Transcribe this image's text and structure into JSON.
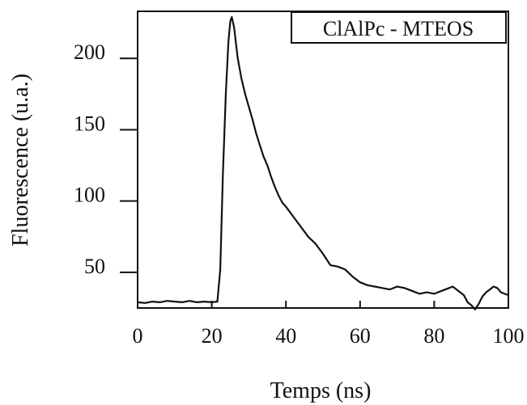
{
  "chart_data": {
    "type": "line",
    "title": "",
    "legend": "ClAlPc - MTEOS",
    "xlabel": "Temps (ns)",
    "ylabel": "Fluorescence (u.a.)",
    "xlim": [
      0,
      100
    ],
    "ylim": [
      25,
      233
    ],
    "x_ticks": [
      "0",
      "20",
      "40",
      "60",
      "80",
      "100"
    ],
    "y_ticks": [
      "50",
      "100",
      "150",
      "200"
    ],
    "grid": false,
    "legend_position": "top-right",
    "series": [
      {
        "x": [
          0,
          2,
          4,
          6,
          8,
          10,
          12,
          14,
          16,
          18,
          20,
          21.5,
          22.3,
          23,
          23.8,
          24.5,
          25,
          25.4,
          26,
          27,
          28,
          29,
          30,
          31,
          32,
          33,
          34,
          35,
          36,
          37,
          38,
          39,
          40,
          42,
          44,
          46,
          48,
          50,
          52,
          54,
          56,
          58,
          60,
          62,
          64,
          66,
          68,
          70,
          72,
          74,
          76,
          78,
          80,
          82,
          84,
          85,
          86,
          88,
          89,
          90,
          91,
          92,
          93,
          94,
          95,
          96,
          97,
          98,
          99,
          100
        ],
        "y": [
          29,
          28.5,
          29.5,
          29,
          30,
          29.5,
          29,
          30,
          29,
          29.5,
          29,
          29.5,
          52,
          118,
          176,
          212,
          226,
          229,
          222,
          200,
          186,
          175,
          166,
          157,
          147,
          139,
          131,
          125,
          117,
          110,
          104,
          99,
          96,
          89,
          82,
          75,
          70,
          63,
          55,
          54,
          52,
          47,
          43,
          41,
          40,
          39,
          38,
          40,
          39,
          37,
          35,
          36,
          35,
          37,
          39,
          40,
          38,
          34,
          29,
          27,
          24,
          28,
          33,
          36,
          38,
          40,
          39,
          36,
          35,
          34
        ]
      }
    ]
  }
}
